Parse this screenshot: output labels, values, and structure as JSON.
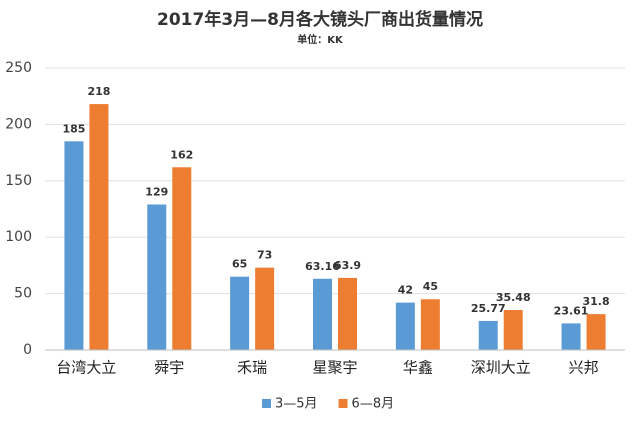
{
  "chart_data": {
    "type": "bar",
    "title": "2017年3月—8月各大镜头厂商出货量情况",
    "subtitle": "单位：KK",
    "categories": [
      "台湾大立",
      "舜宇",
      "禾瑞",
      "星聚宇",
      "华鑫",
      "深圳大立",
      "兴邦"
    ],
    "series": [
      {
        "name": "3—5月",
        "color": "#5b9bd5",
        "values": [
          185,
          129,
          65,
          63.16,
          42,
          25.77,
          23.61
        ]
      },
      {
        "name": "6—8月",
        "color": "#ed7d31",
        "values": [
          218,
          162,
          73,
          63.9,
          45,
          35.48,
          31.8
        ]
      }
    ],
    "ylim": [
      0,
      250
    ],
    "yticks": [
      0,
      50,
      100,
      150,
      200,
      250
    ],
    "grid": true,
    "legend": "bottom"
  }
}
